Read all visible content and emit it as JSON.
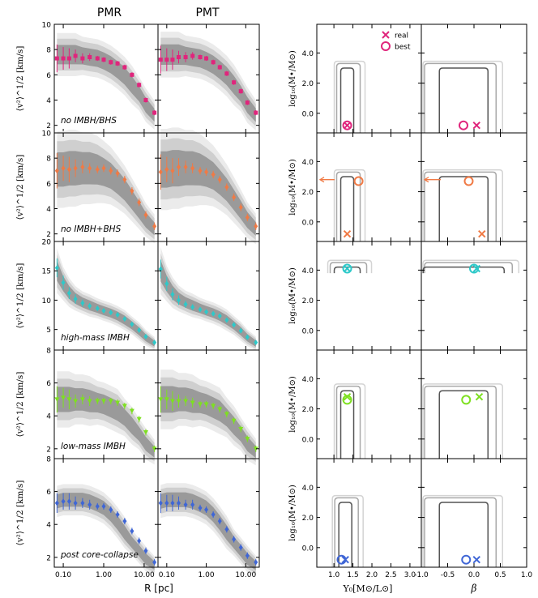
{
  "figure": {
    "column_titles": [
      "PMR",
      "PMT"
    ],
    "x_label_left": "R [pc]",
    "x_label_right_a": "Υ₀[M⊙/L⊙]",
    "x_label_right_b": "β",
    "y_label_left": "⟨v²⟩^1/2 [km/s]",
    "y_label_right": "log₁₀(M•/M⊙)",
    "legend": {
      "real": "real",
      "best": "best"
    }
  },
  "chart_data": {
    "type": "scatter",
    "x_ticks": {
      "values": [
        0.1,
        1,
        10
      ],
      "labels": [
        "0.10",
        "1.00",
        "10.00"
      ]
    },
    "x_range_log": [
      0.06,
      22
    ],
    "upsilon_ticks": {
      "values": [
        1.0,
        1.5,
        2.0,
        2.5,
        3.0
      ],
      "labels": [
        "1.0",
        "1.5",
        "2.0",
        "2.5",
        "3.0"
      ]
    },
    "upsilon_range": [
      0.55,
      3.3
    ],
    "beta_ticks": {
      "values": [
        -1.0,
        -0.5,
        0.0,
        0.5,
        1.0
      ],
      "labels": [
        "-1.0",
        "-0.5",
        "0.0",
        "0.5",
        "1.0"
      ]
    },
    "beta_range": [
      -1.0,
      1.0
    ],
    "mass_ticks": {
      "values": [
        0,
        2,
        4
      ],
      "labels": [
        "0.0",
        "2.0",
        "4.0"
      ]
    },
    "mass_range": [
      -1.3,
      5.9
    ],
    "rows": [
      {
        "label": "no IMBH/BHS",
        "color": "#e0257c",
        "marker": "square",
        "ylim": [
          1.4,
          10
        ],
        "yticks": [
          2,
          4,
          6,
          8,
          10
        ],
        "radius": [
          0.07,
          0.1,
          0.14,
          0.2,
          0.3,
          0.45,
          0.7,
          1.0,
          1.5,
          2.2,
          3.3,
          5,
          7.5,
          11,
          18
        ],
        "velocity": [
          7.3,
          7.3,
          7.3,
          7.5,
          7.3,
          7.4,
          7.3,
          7.2,
          7.0,
          6.9,
          6.6,
          6.0,
          5.2,
          4.0,
          3.0
        ],
        "error": [
          1.1,
          0.9,
          0.8,
          0.5,
          0.4,
          0.3,
          0.2,
          0.2,
          0.2,
          0.2,
          0.2,
          0.2,
          0.2,
          0.2,
          0.2
        ],
        "pmt_velocity": [
          7.2,
          7.2,
          7.2,
          7.4,
          7.4,
          7.5,
          7.4,
          7.3,
          7.0,
          6.6,
          6.1,
          5.4,
          4.7,
          3.8,
          3.0
        ],
        "model_center": [
          7.6,
          7.6,
          7.6,
          7.6,
          7.5,
          7.4,
          7.3,
          7.1,
          6.8,
          6.4,
          5.9,
          5.2,
          4.5,
          3.6,
          2.8
        ],
        "model_width": [
          0.9,
          0.9,
          0.9,
          0.9,
          0.8,
          0.8,
          0.8,
          0.8,
          0.8,
          0.8,
          0.8,
          0.8,
          0.7,
          0.7,
          0.6
        ],
        "fit": {
          "upsilon_real": 1.35,
          "upsilon_best": 1.35,
          "beta_real": 0.05,
          "beta_best": -0.2,
          "mass_real": -0.8,
          "mass_best": -0.8
        }
      },
      {
        "label": "no IMBH+BHS",
        "color": "#f07a45",
        "marker": "diamond",
        "ylim": [
          1.4,
          10
        ],
        "yticks": [
          2,
          4,
          6,
          8,
          10
        ],
        "radius": [
          0.07,
          0.1,
          0.14,
          0.2,
          0.3,
          0.45,
          0.7,
          1.0,
          1.5,
          2.2,
          3.3,
          5,
          7.5,
          11,
          18
        ],
        "velocity": [
          7.0,
          7.2,
          7.1,
          7.2,
          7.3,
          7.2,
          7.1,
          7.2,
          7.0,
          6.8,
          6.3,
          5.4,
          4.5,
          3.5,
          2.6
        ],
        "error": [
          1.4,
          1.0,
          1.0,
          0.7,
          0.5,
          0.4,
          0.3,
          0.3,
          0.3,
          0.3,
          0.3,
          0.3,
          0.3,
          0.3,
          0.3
        ],
        "pmt_velocity": [
          6.9,
          7.1,
          7.0,
          7.3,
          7.3,
          7.2,
          7.0,
          6.9,
          6.7,
          6.3,
          5.7,
          4.9,
          4.1,
          3.3,
          2.6
        ],
        "model_center": [
          7.1,
          7.1,
          7.2,
          7.2,
          7.2,
          7.2,
          7.1,
          6.9,
          6.6,
          6.1,
          5.5,
          4.7,
          3.9,
          3.1,
          2.4
        ],
        "model_width": [
          1.6,
          1.6,
          1.6,
          1.6,
          1.5,
          1.5,
          1.4,
          1.3,
          1.2,
          1.1,
          1.0,
          0.9,
          0.8,
          0.7,
          0.6
        ],
        "fit": {
          "upsilon_real": 1.35,
          "upsilon_best": 1.65,
          "beta_real": 0.15,
          "beta_best": -0.1,
          "mass_real": -0.8,
          "mass_best": 2.7
        }
      },
      {
        "label": "high-mass IMBH",
        "color": "#2ec9c9",
        "marker": "diamond",
        "ylim": [
          1.5,
          20
        ],
        "yticks": [
          5,
          10,
          15,
          20
        ],
        "radius": [
          0.07,
          0.1,
          0.14,
          0.2,
          0.3,
          0.45,
          0.7,
          1.0,
          1.5,
          2.2,
          3.3,
          5,
          7.5,
          11,
          18
        ],
        "velocity": [
          15.5,
          13.0,
          11.2,
          10.2,
          9.5,
          9.0,
          8.6,
          8.2,
          7.9,
          7.5,
          6.8,
          5.9,
          4.9,
          3.8,
          2.8
        ],
        "error": [
          1.6,
          1.2,
          1.0,
          0.8,
          0.6,
          0.5,
          0.4,
          0.4,
          0.4,
          0.4,
          0.4,
          0.4,
          0.4,
          0.4,
          0.4
        ],
        "pmt_velocity": [
          15.3,
          12.8,
          11.0,
          10.0,
          9.3,
          8.8,
          8.4,
          8.0,
          7.7,
          7.3,
          6.6,
          5.8,
          4.8,
          3.7,
          2.8
        ],
        "model_center": [
          15.0,
          12.8,
          11.3,
          10.3,
          9.6,
          9.1,
          8.6,
          8.2,
          7.8,
          7.3,
          6.6,
          5.7,
          4.7,
          3.6,
          2.6
        ],
        "model_width": [
          2.0,
          1.5,
          1.3,
          1.1,
          1.0,
          1.0,
          0.9,
          0.9,
          0.9,
          0.9,
          0.9,
          0.8,
          0.8,
          0.7,
          0.6
        ],
        "fit": {
          "upsilon_real": 1.35,
          "upsilon_best": 1.35,
          "beta_real": 0.05,
          "beta_best": 0.0,
          "mass_real": 4.1,
          "mass_best": 4.1
        }
      },
      {
        "label": "low-mass IMBH",
        "color": "#7ee020",
        "marker": "triangle",
        "ylim": [
          1.4,
          8
        ],
        "yticks": [
          2,
          4,
          6,
          8
        ],
        "radius": [
          0.07,
          0.1,
          0.14,
          0.2,
          0.3,
          0.45,
          0.7,
          1.0,
          1.5,
          2.2,
          3.3,
          5,
          7.5,
          11,
          18
        ],
        "velocity": [
          5.0,
          5.1,
          5.0,
          4.9,
          5.0,
          4.9,
          4.9,
          4.9,
          4.9,
          4.8,
          4.6,
          4.3,
          3.8,
          3.0,
          2.0
        ],
        "error": [
          0.8,
          0.6,
          0.6,
          0.4,
          0.3,
          0.3,
          0.2,
          0.2,
          0.2,
          0.2,
          0.2,
          0.2,
          0.2,
          0.2,
          0.2
        ],
        "pmt_velocity": [
          5.0,
          5.0,
          4.9,
          4.9,
          4.9,
          4.8,
          4.7,
          4.7,
          4.6,
          4.4,
          4.1,
          3.7,
          3.2,
          2.6,
          2.0
        ],
        "model_center": [
          5.0,
          5.0,
          5.0,
          5.0,
          5.0,
          4.9,
          4.8,
          4.7,
          4.5,
          4.3,
          3.9,
          3.4,
          2.9,
          2.3,
          1.8
        ],
        "model_width": [
          0.9,
          0.9,
          0.9,
          0.8,
          0.8,
          0.8,
          0.7,
          0.7,
          0.7,
          0.7,
          0.6,
          0.6,
          0.5,
          0.5,
          0.4
        ],
        "fit": {
          "upsilon_real": 1.35,
          "upsilon_best": 1.35,
          "beta_real": 0.1,
          "beta_best": -0.15,
          "mass_real": 2.8,
          "mass_best": 2.6
        }
      },
      {
        "label": "post core-collapse",
        "color": "#3f66d6",
        "marker": "diamond",
        "ylim": [
          1.4,
          8
        ],
        "yticks": [
          2,
          4,
          6,
          8
        ],
        "radius": [
          0.07,
          0.1,
          0.14,
          0.2,
          0.3,
          0.45,
          0.7,
          1.0,
          1.5,
          2.2,
          3.3,
          5,
          7.5,
          11,
          18
        ],
        "velocity": [
          5.3,
          5.4,
          5.4,
          5.3,
          5.3,
          5.2,
          5.1,
          5.1,
          4.9,
          4.6,
          4.2,
          3.6,
          3.0,
          2.4,
          1.7
        ],
        "error": [
          0.6,
          0.5,
          0.5,
          0.4,
          0.3,
          0.3,
          0.2,
          0.2,
          0.2,
          0.2,
          0.2,
          0.2,
          0.2,
          0.2,
          0.2
        ],
        "pmt_velocity": [
          5.3,
          5.3,
          5.3,
          5.3,
          5.2,
          5.2,
          5.0,
          4.9,
          4.6,
          4.2,
          3.7,
          3.1,
          2.6,
          2.1,
          1.7
        ],
        "model_center": [
          5.4,
          5.5,
          5.5,
          5.5,
          5.5,
          5.4,
          5.2,
          5.0,
          4.6,
          4.1,
          3.5,
          2.9,
          2.4,
          1.9,
          1.5
        ],
        "model_width": [
          0.5,
          0.5,
          0.5,
          0.5,
          0.5,
          0.5,
          0.5,
          0.5,
          0.5,
          0.5,
          0.5,
          0.4,
          0.4,
          0.4,
          0.3
        ],
        "fit": {
          "upsilon_real": 1.3,
          "upsilon_best": 1.2,
          "beta_real": 0.05,
          "beta_best": -0.15,
          "mass_real": -0.8,
          "mass_best": -0.8
        }
      }
    ]
  }
}
